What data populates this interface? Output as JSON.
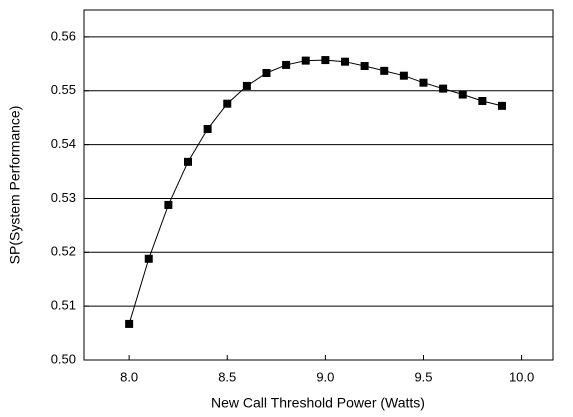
{
  "chart_data": {
    "type": "line",
    "xlabel": "New Call Threshold Power (Watts)",
    "ylabel": "SP(System Performance)",
    "x": [
      8.0,
      8.1,
      8.2,
      8.3,
      8.4,
      8.5,
      8.6,
      8.7,
      8.8,
      8.9,
      9.0,
      9.1,
      9.2,
      9.3,
      9.4,
      9.5,
      9.6,
      9.7,
      9.8,
      9.9
    ],
    "series": [
      {
        "color": "#000000",
        "values": [
          0.5067,
          0.5188,
          0.5288,
          0.5368,
          0.5429,
          0.5476,
          0.5509,
          0.5533,
          0.5548,
          0.5556,
          0.5557,
          0.5554,
          0.5546,
          0.5537,
          0.5528,
          0.5515,
          0.5504,
          0.5493,
          0.5481,
          0.5472
        ]
      }
    ],
    "xlim": [
      7.77,
      10.16
    ],
    "xticks": [
      {
        "value": 8.0,
        "label": "8.0"
      },
      8.5,
      {
        "value": 9.0,
        "label": "9.0"
      },
      9.5,
      {
        "value": 10.0,
        "label": "10.0"
      }
    ],
    "ylim": [
      0.5,
      0.565
    ],
    "yticks": [
      {
        "value": 0.5,
        "label": "0.50"
      },
      0.51,
      0.52,
      0.53,
      0.54,
      0.55,
      0.56
    ],
    "grid": true
  }
}
